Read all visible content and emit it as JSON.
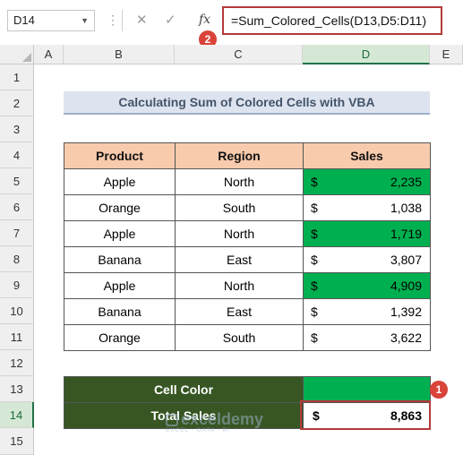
{
  "formula_bar": {
    "name_box": "D14",
    "cancel_icon": "✕",
    "enter_icon": "✓",
    "fx_label": "fx",
    "formula": "=Sum_Colored_Cells(D13,D5:D11)"
  },
  "badges": {
    "badge1": "1",
    "badge2": "2"
  },
  "columns": [
    "A",
    "B",
    "C",
    "D",
    "E"
  ],
  "active_column": "D",
  "rows": [
    "1",
    "2",
    "3",
    "4",
    "5",
    "6",
    "7",
    "8",
    "9",
    "10",
    "11",
    "12",
    "13",
    "14",
    "15"
  ],
  "active_row": "14",
  "sheet": {
    "title": "Calculating Sum of Colored Cells with VBA",
    "headers": [
      "Product",
      "Region",
      "Sales"
    ],
    "data": [
      {
        "product": "Apple",
        "region": "North",
        "currency": "$",
        "sales": "2,235",
        "highlight": true
      },
      {
        "product": "Orange",
        "region": "South",
        "currency": "$",
        "sales": "1,038",
        "highlight": false
      },
      {
        "product": "Apple",
        "region": "North",
        "currency": "$",
        "sales": "1,719",
        "highlight": true
      },
      {
        "product": "Banana",
        "region": "East",
        "currency": "$",
        "sales": "3,807",
        "highlight": false
      },
      {
        "product": "Apple",
        "region": "North",
        "currency": "$",
        "sales": "4,909",
        "highlight": true
      },
      {
        "product": "Banana",
        "region": "East",
        "currency": "$",
        "sales": "1,392",
        "highlight": false
      },
      {
        "product": "Orange",
        "region": "South",
        "currency": "$",
        "sales": "3,622",
        "highlight": false
      }
    ],
    "cell_color_label": "Cell Color",
    "total_label": "Total Sales",
    "total_currency": "$",
    "total_value": "8,863"
  },
  "watermark": {
    "name": "exceldemy",
    "tagline": "EXCEL · DATA · BI"
  },
  "colors": {
    "highlight_green": "#00b050",
    "summary_dark_green": "#375623",
    "header_peach": "#f8cbad",
    "annotation_red": "#b33a3a"
  }
}
